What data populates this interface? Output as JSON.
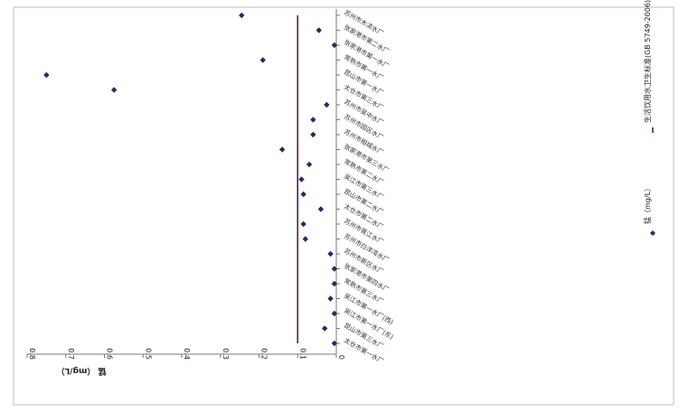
{
  "chart_data": {
    "type": "scatter",
    "orientation": "rotated-90-clockwise",
    "ylabel": "锰 （mg/L）",
    "ylim": [
      0,
      0.8
    ],
    "yticks": [
      "0",
      "0.1",
      "0.2",
      "0.3",
      "0.4",
      "0.5",
      "0.6",
      "0.7",
      "0.8"
    ],
    "grid": false,
    "legend_position": "right",
    "categories": [
      "太仓市第一水厂",
      "昆山市第三水厂",
      "吴江市第一水厂(东)",
      "吴江市第一水厂(西)",
      "常熟市第三水厂",
      "张家港市第四水厂",
      "苏州市新区水厂",
      "苏州市白洋湾水厂",
      "苏州市胥江水厂",
      "太仓市第二水厂",
      "昆山市第二水厂",
      "吴江市第三水厂",
      "常熟市第二水厂",
      "张家港市第三水厂",
      "苏州市相城水厂",
      "苏州市园区水厂",
      "苏州市吴中水厂",
      "太仓市第三水厂",
      "昆山市第一水厂",
      "常熟市第一水厂",
      "张家港市第一水厂",
      "张家港市第二水厂",
      "苏州市木渎水厂"
    ],
    "series": [
      {
        "name": "锰（mg/L）",
        "color": "#1f2f66",
        "marker": "diamond",
        "values": [
          0.005,
          0.03,
          0.005,
          0.015,
          0.005,
          0.005,
          0.015,
          0.08,
          0.085,
          0.04,
          0.085,
          0.09,
          0.07,
          0.14,
          0.06,
          0.06,
          0.025,
          0.575,
          0.75,
          0.19,
          0.005,
          0.045,
          0.245
        ]
      },
      {
        "name": "生活饮用水卫生标准(GB 5749-2006)",
        "color": "#5a1a4a",
        "type": "line",
        "value": 0.1
      }
    ]
  }
}
